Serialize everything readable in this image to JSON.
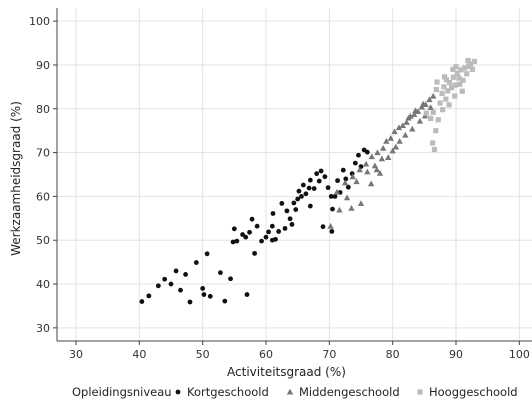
{
  "chart_data": {
    "type": "scatter",
    "xlabel": "Activiteitsgraad (%)",
    "ylabel": "Werkzaamheidsgraad (%)",
    "xlim": [
      27,
      102
    ],
    "ylim": [
      27,
      103
    ],
    "xticks": [
      30,
      40,
      50,
      60,
      70,
      80,
      90,
      100
    ],
    "yticks": [
      30,
      40,
      50,
      60,
      70,
      80,
      90,
      100
    ],
    "grid": true,
    "legend": {
      "title": "Opleidingsniveau",
      "placement": "bottom"
    },
    "series": [
      {
        "name": "Kortgeschoold",
        "marker": "circle",
        "color": "#111111",
        "points": [
          [
            40.4,
            36.0
          ],
          [
            41.5,
            37.3
          ],
          [
            43.0,
            39.6
          ],
          [
            44.0,
            41.1
          ],
          [
            45.0,
            40.0
          ],
          [
            45.8,
            43.0
          ],
          [
            46.5,
            38.6
          ],
          [
            47.3,
            42.2
          ],
          [
            48.0,
            35.9
          ],
          [
            49.0,
            44.9
          ],
          [
            50.0,
            39.0
          ],
          [
            50.2,
            37.6
          ],
          [
            50.7,
            46.9
          ],
          [
            51.2,
            37.2
          ],
          [
            52.8,
            42.6
          ],
          [
            53.5,
            36.1
          ],
          [
            54.4,
            41.2
          ],
          [
            54.8,
            49.6
          ],
          [
            55.0,
            52.6
          ],
          [
            55.4,
            49.8
          ],
          [
            56.3,
            51.3
          ],
          [
            56.8,
            50.7
          ],
          [
            57.4,
            51.8
          ],
          [
            57.8,
            54.8
          ],
          [
            58.2,
            47.0
          ],
          [
            58.6,
            53.2
          ],
          [
            59.3,
            49.8
          ],
          [
            60.0,
            50.7
          ],
          [
            60.4,
            51.9
          ],
          [
            61.0,
            53.2
          ],
          [
            61.1,
            56.1
          ],
          [
            61.5,
            50.2
          ],
          [
            62.0,
            52.0
          ],
          [
            62.5,
            58.4
          ],
          [
            63.0,
            52.7
          ],
          [
            63.3,
            56.7
          ],
          [
            63.8,
            54.9
          ],
          [
            64.1,
            53.6
          ],
          [
            64.4,
            58.5
          ],
          [
            64.7,
            57.0
          ],
          [
            65.0,
            59.4
          ],
          [
            65.2,
            61.2
          ],
          [
            65.6,
            60.0
          ],
          [
            65.9,
            62.6
          ],
          [
            66.3,
            60.6
          ],
          [
            66.8,
            61.9
          ],
          [
            67.0,
            63.7
          ],
          [
            67.6,
            61.8
          ],
          [
            68.0,
            65.2
          ],
          [
            68.4,
            63.5
          ],
          [
            68.7,
            65.8
          ],
          [
            69.3,
            64.5
          ],
          [
            69.8,
            62.0
          ],
          [
            70.3,
            60.0
          ],
          [
            70.5,
            57.1
          ],
          [
            70.9,
            60.0
          ],
          [
            71.3,
            63.6
          ],
          [
            71.7,
            60.9
          ],
          [
            72.2,
            66.0
          ],
          [
            72.6,
            64.0
          ],
          [
            73.0,
            62.1
          ],
          [
            73.6,
            65.2
          ],
          [
            74.1,
            67.6
          ],
          [
            74.6,
            69.4
          ],
          [
            75.0,
            66.8
          ],
          [
            75.5,
            70.6
          ],
          [
            76.0,
            70.1
          ],
          [
            57.0,
            37.6
          ],
          [
            61.0,
            50.0
          ],
          [
            70.4,
            52.0
          ],
          [
            69.0,
            53.1
          ],
          [
            67.0,
            57.8
          ]
        ]
      },
      {
        "name": "Middengeschoold",
        "marker": "triangle",
        "color": "#777777",
        "points": [
          [
            70.2,
            53.2
          ],
          [
            71.6,
            56.9
          ],
          [
            73.5,
            57.3
          ],
          [
            75.0,
            58.4
          ],
          [
            71.2,
            61.0
          ],
          [
            72.5,
            63.1
          ],
          [
            73.7,
            64.5
          ],
          [
            74.8,
            66.1
          ],
          [
            75.8,
            67.4
          ],
          [
            76.7,
            69.1
          ],
          [
            77.6,
            70.0
          ],
          [
            78.5,
            71.0
          ],
          [
            79.0,
            72.6
          ],
          [
            79.7,
            73.3
          ],
          [
            80.3,
            74.8
          ],
          [
            81.0,
            75.7
          ],
          [
            81.6,
            76.2
          ],
          [
            82.2,
            76.9
          ],
          [
            82.8,
            78.3
          ],
          [
            83.4,
            78.7
          ],
          [
            84.0,
            79.4
          ],
          [
            84.6,
            80.4
          ],
          [
            85.2,
            81.0
          ],
          [
            85.8,
            82.1
          ],
          [
            86.4,
            82.9
          ],
          [
            77.2,
            67.0
          ],
          [
            78.3,
            68.6
          ],
          [
            76.6,
            62.9
          ],
          [
            78.0,
            65.3
          ],
          [
            79.3,
            68.9
          ],
          [
            80.0,
            70.4
          ],
          [
            81.1,
            72.6
          ],
          [
            82.0,
            74.0
          ],
          [
            83.1,
            75.4
          ],
          [
            84.3,
            77.2
          ],
          [
            85.1,
            78.4
          ],
          [
            86.0,
            80.3
          ],
          [
            80.5,
            71.3
          ],
          [
            74.3,
            63.4
          ],
          [
            76.0,
            65.6
          ],
          [
            72.8,
            59.7
          ],
          [
            77.5,
            66.1
          ],
          [
            83.6,
            79.6
          ],
          [
            84.8,
            81.1
          ],
          [
            82.5,
            77.9
          ]
        ]
      },
      {
        "name": "Hooggeschoold",
        "marker": "square",
        "color": "#bbbbbb",
        "points": [
          [
            86.3,
            72.2
          ],
          [
            86.8,
            75.0
          ],
          [
            86.4,
            79.2
          ],
          [
            87.2,
            77.5
          ],
          [
            87.5,
            81.3
          ],
          [
            87.8,
            83.5
          ],
          [
            88.1,
            85.0
          ],
          [
            88.4,
            82.2
          ],
          [
            88.7,
            84.1
          ],
          [
            89.0,
            86.0
          ],
          [
            89.3,
            84.8
          ],
          [
            89.6,
            87.2
          ],
          [
            89.9,
            85.4
          ],
          [
            90.2,
            88.1
          ],
          [
            90.5,
            87.0
          ],
          [
            90.8,
            88.9
          ],
          [
            91.1,
            86.5
          ],
          [
            91.4,
            89.3
          ],
          [
            91.7,
            88.0
          ],
          [
            92.0,
            89.7
          ],
          [
            92.3,
            90.2
          ],
          [
            92.6,
            89.0
          ],
          [
            92.9,
            90.8
          ],
          [
            88.9,
            80.9
          ],
          [
            87.9,
            79.8
          ],
          [
            86.0,
            77.8
          ],
          [
            86.6,
            70.7
          ],
          [
            85.3,
            79.0
          ],
          [
            88.2,
            87.3
          ],
          [
            89.8,
            82.9
          ],
          [
            91.0,
            84.0
          ],
          [
            90.0,
            89.6
          ],
          [
            87.0,
            86.1
          ],
          [
            89.5,
            89.0
          ],
          [
            91.9,
            91.0
          ],
          [
            88.5,
            86.6
          ],
          [
            90.6,
            85.6
          ],
          [
            86.9,
            84.4
          ]
        ]
      }
    ]
  }
}
